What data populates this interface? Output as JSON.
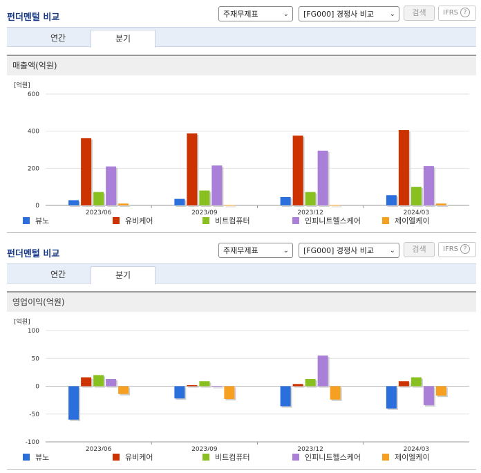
{
  "panels": [
    {
      "title": "펀더멘털 비교",
      "select_statement": "주재무제표",
      "select_compare": "[FG000] 경쟁사 비교",
      "search_label": "검색",
      "ifrs_label": "IFRS",
      "help_glyph": "?",
      "tabs": [
        {
          "label": "연간"
        },
        {
          "label": "분기"
        }
      ],
      "active_tab": "분기",
      "section_title": "매출액(억원)",
      "unit_label": "[억원]"
    },
    {
      "title": "펀더멘털 비교",
      "select_statement": "주재무제표",
      "select_compare": "[FG000] 경쟁사 비교",
      "search_label": "검색",
      "ifrs_label": "IFRS",
      "help_glyph": "?",
      "tabs": [
        {
          "label": "연간"
        },
        {
          "label": "분기"
        }
      ],
      "active_tab": "분기",
      "section_title": "영업이익(억원)",
      "unit_label": "[억원]"
    }
  ],
  "chart_data": [
    {
      "type": "bar",
      "title": "매출액(억원)",
      "ylabel": "[억원]",
      "categories": [
        "2023/06",
        "2023/09",
        "2023/12",
        "2024/03"
      ],
      "ylim": [
        0,
        600
      ],
      "yticks": [
        "0",
        "200",
        "400",
        "600"
      ],
      "series": [
        {
          "name": "뷰노",
          "color": "#2a6fdb",
          "values": [
            28,
            35,
            45,
            55
          ]
        },
        {
          "name": "유비케어",
          "color": "#cc3300",
          "values": [
            362,
            388,
            376,
            406
          ]
        },
        {
          "name": "비트컴퓨터",
          "color": "#88c020",
          "values": [
            72,
            80,
            72,
            100
          ]
        },
        {
          "name": "인피니트헬스케어",
          "color": "#a97fd8",
          "values": [
            210,
            215,
            295,
            212
          ]
        },
        {
          "name": "제이엘케이",
          "color": "#f5a020",
          "values": [
            10,
            2,
            2,
            10
          ]
        }
      ],
      "legend": "bottom",
      "grid": true
    },
    {
      "type": "bar",
      "title": "영업이익(억원)",
      "ylabel": "[억원]",
      "categories": [
        "2023/06",
        "2023/09",
        "2023/12",
        "2024/03"
      ],
      "ylim": [
        -100,
        100
      ],
      "yticks": [
        "100",
        "50",
        "0",
        "-50",
        "-100"
      ],
      "series": [
        {
          "name": "뷰노",
          "color": "#2a6fdb",
          "values": [
            -60,
            -22,
            -36,
            -40
          ]
        },
        {
          "name": "유비케어",
          "color": "#cc3300",
          "values": [
            16,
            2,
            4,
            9
          ]
        },
        {
          "name": "비트컴퓨터",
          "color": "#88c020",
          "values": [
            20,
            9,
            13,
            16
          ]
        },
        {
          "name": "인피니트헬스케어",
          "color": "#a97fd8",
          "values": [
            13,
            -1,
            55,
            -34
          ]
        },
        {
          "name": "제이엘케이",
          "color": "#f5a020",
          "values": [
            -14,
            -23,
            -24,
            -17
          ]
        }
      ],
      "legend": "bottom",
      "grid": true
    }
  ]
}
